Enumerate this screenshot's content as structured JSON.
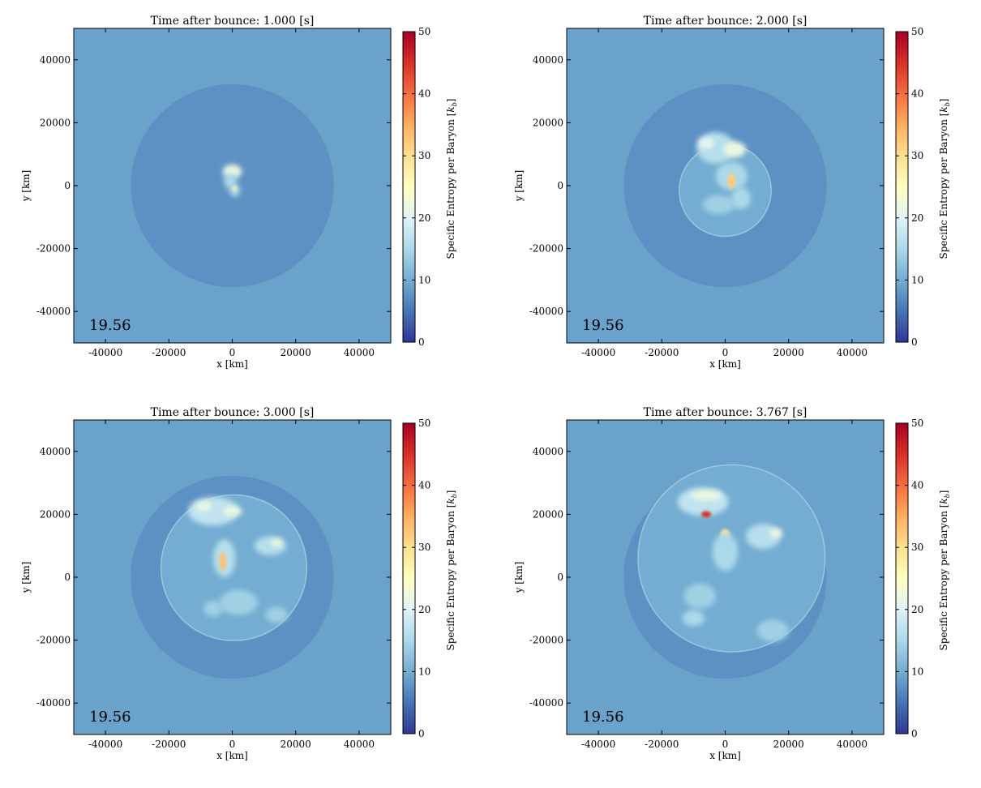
{
  "figure": {
    "panels": [
      {
        "title": "Time after bounce: 1.000 [s]",
        "inset": "19.56",
        "xlabel": "x [km]",
        "ylabel": "y [km]",
        "colorbar_label": "Specific Entropy per Baryon [k_b]"
      },
      {
        "title": "Time after bounce: 2.000 [s]",
        "inset": "19.56",
        "xlabel": "x [km]",
        "ylabel": "y [km]",
        "colorbar_label": "Specific Entropy per Baryon [k_b]"
      },
      {
        "title": "Time after bounce: 3.000 [s]",
        "inset": "19.56",
        "xlabel": "x [km]",
        "ylabel": "y [km]",
        "colorbar_label": "Specific Entropy per Baryon [k_b]"
      },
      {
        "title": "Time after bounce: 3.767 [s]",
        "inset": "19.56",
        "xlabel": "x [km]",
        "ylabel": "y [km]",
        "colorbar_label": "Specific Entropy per Baryon [k_b]"
      }
    ]
  },
  "colors": {
    "background_field": "#5b8fc4",
    "shell": "#4f83bf",
    "cmap": [
      "#313695",
      "#4575b4",
      "#74add1",
      "#abd9e9",
      "#e0f3f8",
      "#ffffbf",
      "#fee090",
      "#fdae61",
      "#f46d43",
      "#d73027",
      "#a50026"
    ]
  },
  "chart_data": [
    {
      "type": "heatmap",
      "title": "Time after bounce: 1.000 [s]",
      "time_s": 1.0,
      "xlabel": "x [km]",
      "ylabel": "y [km]",
      "xlim": [
        -50000,
        50000
      ],
      "ylim": [
        -50000,
        50000
      ],
      "xticks": [
        "-40000",
        "-20000",
        "0",
        "20000",
        "40000"
      ],
      "yticks": [
        "40000",
        "20000",
        "0",
        "-20000",
        "-40000"
      ],
      "colorbar": {
        "label": "Specific Entropy per Baryon [k_b]",
        "range": [
          0,
          50
        ],
        "ticks": [
          "0",
          "10",
          "20",
          "30",
          "40",
          "50"
        ]
      },
      "annotation": "19.56",
      "background_entropy": 9,
      "shell": {
        "radius_km": 32000,
        "entropy": 7.5
      },
      "bubble": {
        "radius_km": 0,
        "cx_km": 0,
        "cy_km": 0
      },
      "blobs": [
        {
          "x": 0,
          "y": 4500,
          "rx": 3000,
          "ry": 2200,
          "s": 22
        },
        {
          "x": -600,
          "y": 1500,
          "rx": 2000,
          "ry": 2600,
          "s": 15
        },
        {
          "x": 800,
          "y": -1500,
          "rx": 1600,
          "ry": 2000,
          "s": 16
        },
        {
          "x": 700,
          "y": -800,
          "rx": 700,
          "ry": 700,
          "s": 28
        }
      ]
    },
    {
      "type": "heatmap",
      "title": "Time after bounce: 2.000 [s]",
      "time_s": 2.0,
      "xlabel": "x [km]",
      "ylabel": "y [km]",
      "xlim": [
        -50000,
        50000
      ],
      "ylim": [
        -50000,
        50000
      ],
      "xticks": [
        "-40000",
        "-20000",
        "0",
        "20000",
        "40000"
      ],
      "yticks": [
        "40000",
        "20000",
        "0",
        "-20000",
        "-40000"
      ],
      "colorbar": {
        "label": "Specific Entropy per Baryon [k_b]",
        "range": [
          0,
          50
        ],
        "ticks": [
          "0",
          "10",
          "20",
          "30",
          "40",
          "50"
        ]
      },
      "annotation": "19.56",
      "background_entropy": 9,
      "shell": {
        "radius_km": 32000,
        "entropy": 7.5
      },
      "bubble": {
        "radius_km": 14500,
        "cx_km": 0,
        "cy_km": -1500
      },
      "blobs": [
        {
          "x": -3000,
          "y": 12000,
          "rx": 6000,
          "ry": 5000,
          "s": 16
        },
        {
          "x": 3000,
          "y": 11500,
          "rx": 3500,
          "ry": 2500,
          "s": 22
        },
        {
          "x": -6000,
          "y": 13500,
          "rx": 2500,
          "ry": 1800,
          "s": 21
        },
        {
          "x": 2000,
          "y": 3000,
          "rx": 5000,
          "ry": 4500,
          "s": 15
        },
        {
          "x": 2000,
          "y": 1500,
          "rx": 1200,
          "ry": 2500,
          "s": 32
        },
        {
          "x": -2000,
          "y": -6000,
          "rx": 5000,
          "ry": 3000,
          "s": 14
        },
        {
          "x": 5000,
          "y": -4000,
          "rx": 3000,
          "ry": 3500,
          "s": 15
        }
      ]
    },
    {
      "type": "heatmap",
      "title": "Time after bounce: 3.000 [s]",
      "time_s": 3.0,
      "xlabel": "x [km]",
      "ylabel": "y [km]",
      "xlim": [
        -50000,
        50000
      ],
      "ylim": [
        -50000,
        50000
      ],
      "xticks": [
        "-40000",
        "-20000",
        "0",
        "20000",
        "40000"
      ],
      "yticks": [
        "40000",
        "20000",
        "0",
        "-20000",
        "-40000"
      ],
      "colorbar": {
        "label": "Specific Entropy per Baryon [k_b]",
        "range": [
          0,
          50
        ],
        "ticks": [
          "0",
          "10",
          "20",
          "30",
          "40",
          "50"
        ]
      },
      "annotation": "19.56",
      "background_entropy": 9,
      "shell": {
        "radius_km": 32000,
        "entropy": 7.5
      },
      "bubble": {
        "radius_km": 23000,
        "cx_km": 500,
        "cy_km": 3000
      },
      "blobs": [
        {
          "x": -6000,
          "y": 21000,
          "rx": 8000,
          "ry": 4500,
          "s": 17
        },
        {
          "x": -9000,
          "y": 22500,
          "rx": 2500,
          "ry": 1500,
          "s": 22
        },
        {
          "x": 0,
          "y": 21000,
          "rx": 3000,
          "ry": 1500,
          "s": 22
        },
        {
          "x": 12000,
          "y": 10000,
          "rx": 5000,
          "ry": 3000,
          "s": 16
        },
        {
          "x": 14000,
          "y": 11000,
          "rx": 1800,
          "ry": 1200,
          "s": 23
        },
        {
          "x": -2500,
          "y": 6000,
          "rx": 3500,
          "ry": 6000,
          "s": 16
        },
        {
          "x": -3000,
          "y": 5000,
          "rx": 1000,
          "ry": 3000,
          "s": 33
        },
        {
          "x": 2000,
          "y": -8000,
          "rx": 6000,
          "ry": 4000,
          "s": 14
        },
        {
          "x": 14000,
          "y": -12000,
          "rx": 3500,
          "ry": 2500,
          "s": 14
        },
        {
          "x": -6000,
          "y": -10000,
          "rx": 3000,
          "ry": 2500,
          "s": 14
        }
      ]
    },
    {
      "type": "heatmap",
      "title": "Time after bounce: 3.767 [s]",
      "time_s": 3.767,
      "xlabel": "x [km]",
      "ylabel": "y [km]",
      "xlim": [
        -50000,
        50000
      ],
      "ylim": [
        -50000,
        50000
      ],
      "xticks": [
        "-40000",
        "-20000",
        "0",
        "20000",
        "40000"
      ],
      "yticks": [
        "40000",
        "20000",
        "0",
        "-20000",
        "-40000"
      ],
      "colorbar": {
        "label": "Specific Entropy per Baryon [k_b]",
        "range": [
          0,
          50
        ],
        "ticks": [
          "0",
          "10",
          "20",
          "30",
          "40",
          "50"
        ]
      },
      "annotation": "19.56",
      "background_entropy": 9,
      "shell": {
        "radius_km": 32000,
        "entropy": 7.5
      },
      "bubble": {
        "radius_km": 29500,
        "cx_km": 2000,
        "cy_km": 6000
      },
      "blobs": [
        {
          "x": -7000,
          "y": 24000,
          "rx": 8000,
          "ry": 4500,
          "s": 17
        },
        {
          "x": -6000,
          "y": 26000,
          "rx": 5000,
          "ry": 1500,
          "s": 22
        },
        {
          "x": -6000,
          "y": 20000,
          "rx": 1500,
          "ry": 1000,
          "s": 45
        },
        {
          "x": 0,
          "y": 13500,
          "rx": 1500,
          "ry": 1800,
          "s": 30
        },
        {
          "x": 12000,
          "y": 13000,
          "rx": 5500,
          "ry": 4000,
          "s": 16
        },
        {
          "x": 16000,
          "y": 14000,
          "rx": 2000,
          "ry": 1500,
          "s": 22
        },
        {
          "x": 0,
          "y": 8000,
          "rx": 4000,
          "ry": 6000,
          "s": 15
        },
        {
          "x": -8000,
          "y": -6000,
          "rx": 5000,
          "ry": 4000,
          "s": 14
        },
        {
          "x": -10000,
          "y": -13000,
          "rx": 3500,
          "ry": 2500,
          "s": 15
        },
        {
          "x": 15000,
          "y": -17000,
          "rx": 5000,
          "ry": 3500,
          "s": 14
        }
      ]
    }
  ]
}
